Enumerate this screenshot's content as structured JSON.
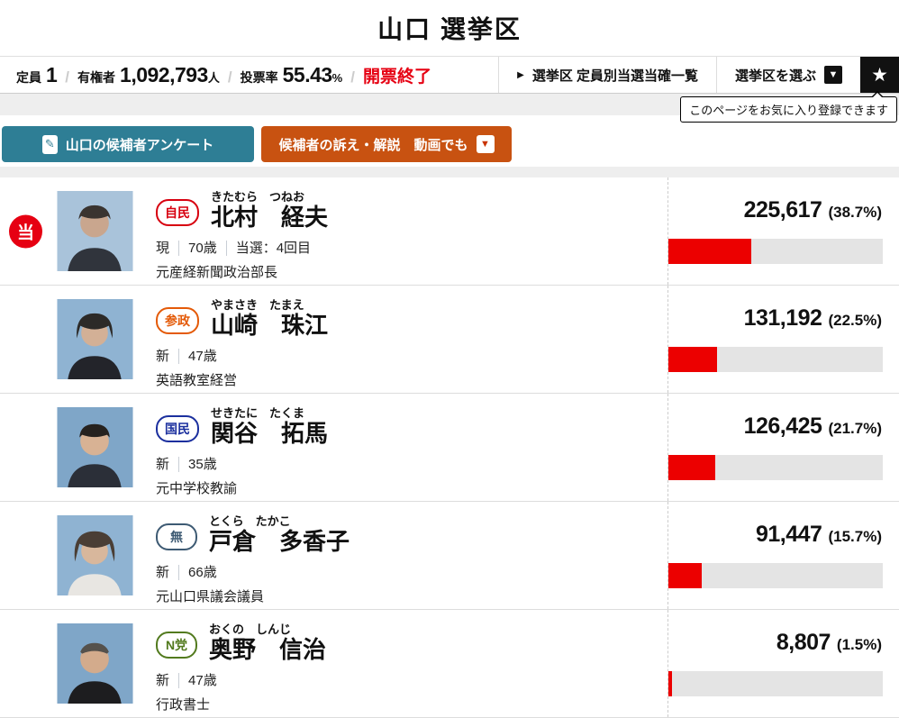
{
  "header": {
    "title": "山口 選挙区"
  },
  "stats": {
    "seats_label": "定員",
    "seats": "1",
    "voters_label": "有権者",
    "voters": "1,092,793",
    "voters_unit": "人",
    "turnout_label": "投票率",
    "turnout": "55.43",
    "turnout_unit": "%",
    "status": "開票終了"
  },
  "nav": {
    "list_link": "選挙区 定員別当選当確一覧",
    "select_label": "選挙区を選ぶ",
    "favorite_tooltip": "このページをお気に入り登録できます"
  },
  "actions": {
    "survey_button": "山口の候補者アンケート",
    "video_button": "候補者の訴え・解説　動画でも"
  },
  "icons": {
    "star": "★",
    "dropdown": "▼",
    "caret_right": "▶",
    "survey_pen": "✎"
  },
  "colors": {
    "accent_red": "#e60012",
    "bar_red": "#ec0000",
    "bar_track": "#e4e4e4"
  },
  "candidates": [
    {
      "winner_mark": "当",
      "party": "自民",
      "party_color": "#d7000f",
      "kana": "きたむら　つねお",
      "name": "北村　経夫",
      "status": "現",
      "age": "70歳",
      "note": "当選：4回目",
      "career": "元産経新聞政治部長",
      "votes": "225,617",
      "percent_label": "(38.7%)",
      "percent": 38.7
    },
    {
      "party": "参政",
      "party_color": "#e45a08",
      "kana": "やまさき　たまえ",
      "name": "山崎　珠江",
      "status": "新",
      "age": "47歳",
      "note": "",
      "career": "英語教室経営",
      "votes": "131,192",
      "percent_label": "(22.5%)",
      "percent": 22.5
    },
    {
      "party": "国民",
      "party_color": "#1b2f9e",
      "kana": "せきたに　たくま",
      "name": "関谷　拓馬",
      "status": "新",
      "age": "35歳",
      "note": "",
      "career": "元中学校教諭",
      "votes": "126,425",
      "percent_label": "(21.7%)",
      "percent": 21.7
    },
    {
      "party": "無",
      "party_color": "#3d5a73",
      "kana": "とくら　たかこ",
      "name": "戸倉　多香子",
      "status": "新",
      "age": "66歳",
      "note": "",
      "career": "元山口県議会議員",
      "votes": "91,447",
      "percent_label": "(15.7%)",
      "percent": 15.7
    },
    {
      "party": "N党",
      "party_color": "#527a1e",
      "kana": "おくの　しんじ",
      "name": "奥野　信治",
      "status": "新",
      "age": "47歳",
      "note": "",
      "career": "行政書士",
      "votes": "8,807",
      "percent_label": "(1.5%)",
      "percent": 1.5
    }
  ]
}
